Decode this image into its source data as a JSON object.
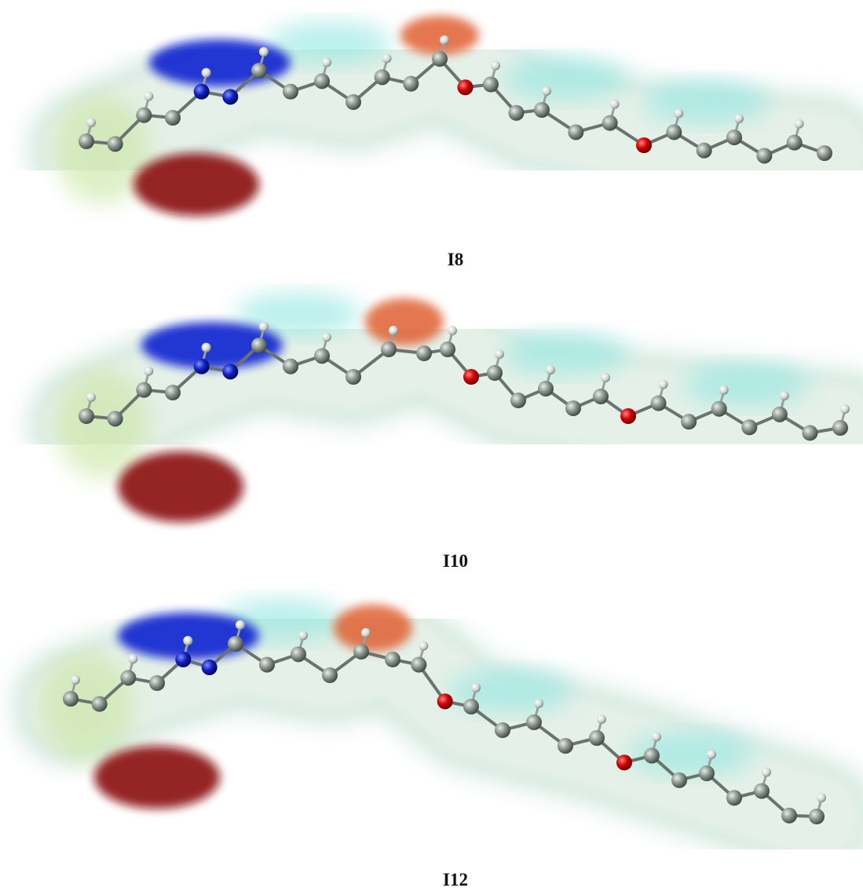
{
  "figures": [
    {
      "label": "I8"
    },
    {
      "label": "I10"
    },
    {
      "label": "I12"
    }
  ]
}
